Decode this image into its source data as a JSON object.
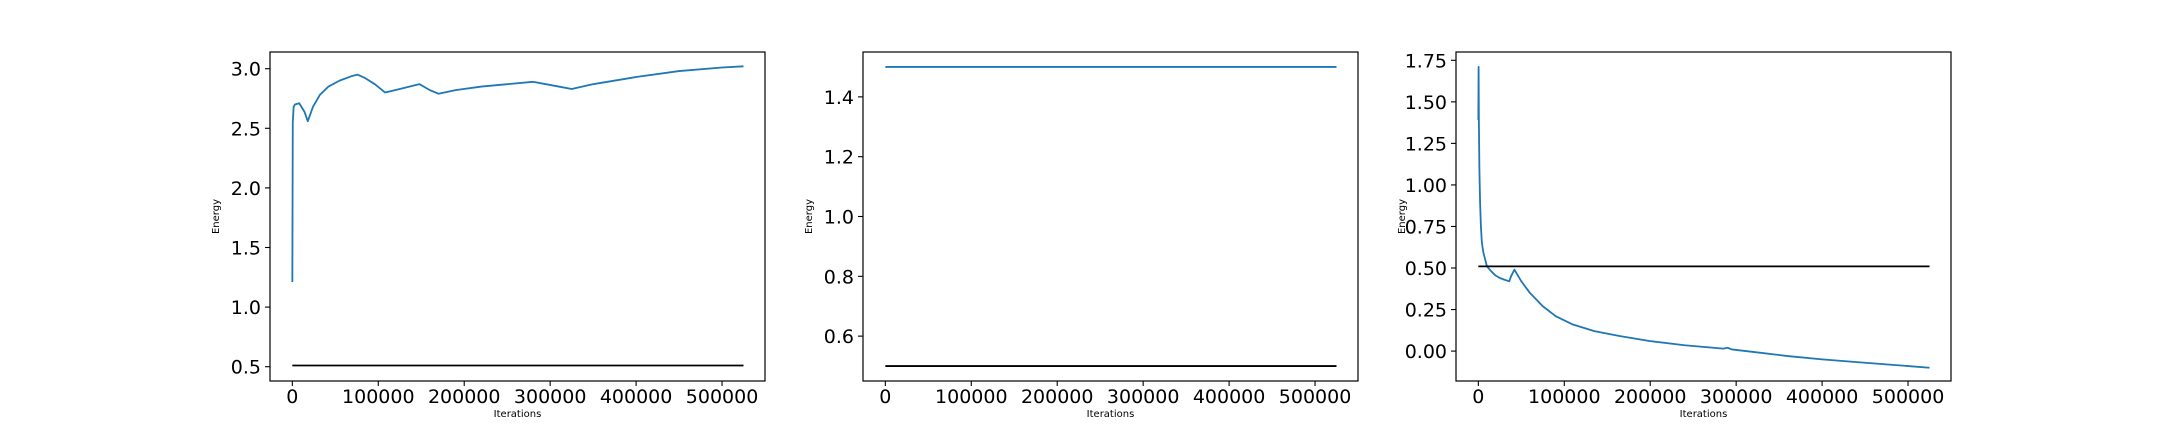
{
  "colors": {
    "series": "#1f77b4",
    "reference": "#000000",
    "axes": "#000000",
    "background": "#ffffff"
  },
  "chart_data": [
    {
      "type": "line",
      "xlabel": "Iterations",
      "ylabel": "Energy",
      "xlim": [
        -26000,
        550000
      ],
      "ylim": [
        0.38,
        3.14
      ],
      "grid": false,
      "xticks": [
        0,
        100000,
        200000,
        300000,
        400000,
        500000
      ],
      "xtick_labels": [
        "0",
        "100000",
        "200000",
        "300000",
        "400000",
        "500000"
      ],
      "yticks": [
        0.5,
        1.0,
        1.5,
        2.0,
        2.5,
        3.0
      ],
      "ytick_labels": [
        "0.5",
        "1.0",
        "1.5",
        "2.0",
        "2.5",
        "3.0"
      ],
      "series": [
        {
          "color": "#1f77b4",
          "x": [
            0,
            500,
            1500,
            3000,
            8000,
            14000,
            18000,
            24000,
            32000,
            42000,
            55000,
            70000,
            76000,
            85000,
            96000,
            108000,
            125000,
            148000,
            160000,
            170000,
            190000,
            220000,
            250000,
            280000,
            295000,
            310000,
            325000,
            350000,
            400000,
            450000,
            500000,
            525000
          ],
          "y": [
            1.21,
            2.55,
            2.68,
            2.7,
            2.71,
            2.64,
            2.56,
            2.68,
            2.78,
            2.85,
            2.9,
            2.94,
            2.95,
            2.92,
            2.87,
            2.8,
            2.83,
            2.87,
            2.82,
            2.79,
            2.82,
            2.85,
            2.87,
            2.89,
            2.87,
            2.85,
            2.83,
            2.87,
            2.93,
            2.98,
            3.01,
            3.02
          ]
        },
        {
          "color": "#000000",
          "x": [
            0,
            525000
          ],
          "y": [
            0.51,
            0.51
          ]
        }
      ]
    },
    {
      "type": "line",
      "xlabel": "Iterations",
      "ylabel": "Energy",
      "xlim": [
        -26000,
        550000
      ],
      "ylim": [
        0.45,
        1.55
      ],
      "grid": false,
      "xticks": [
        0,
        100000,
        200000,
        300000,
        400000,
        500000
      ],
      "xtick_labels": [
        "0",
        "100000",
        "200000",
        "300000",
        "400000",
        "500000"
      ],
      "yticks": [
        0.6,
        0.8,
        1.0,
        1.2,
        1.4
      ],
      "ytick_labels": [
        "0.6",
        "0.8",
        "1.0",
        "1.2",
        "1.4"
      ],
      "series": [
        {
          "color": "#1f77b4",
          "x": [
            0,
            525000
          ],
          "y": [
            1.5,
            1.5
          ]
        },
        {
          "color": "#000000",
          "x": [
            0,
            525000
          ],
          "y": [
            0.5,
            0.5
          ]
        }
      ]
    },
    {
      "type": "line",
      "xlabel": "Iterations",
      "ylabel": "Energy",
      "xlim": [
        -26000,
        550000
      ],
      "ylim": [
        -0.18,
        1.8
      ],
      "grid": false,
      "xticks": [
        0,
        100000,
        200000,
        300000,
        400000,
        500000
      ],
      "xtick_labels": [
        "0",
        "100000",
        "200000",
        "300000",
        "400000",
        "500000"
      ],
      "yticks": [
        0.0,
        0.25,
        0.5,
        0.75,
        1.0,
        1.25,
        1.5,
        1.75
      ],
      "ytick_labels": [
        "0.00",
        "0.25",
        "0.50",
        "0.75",
        "1.00",
        "1.25",
        "1.50",
        "1.75"
      ],
      "series": [
        {
          "color": "#1f77b4",
          "x": [
            0,
            300,
            600,
            1200,
            2000,
            3000,
            4000,
            5000,
            6000,
            8000,
            10000,
            15000,
            20000,
            25000,
            30000,
            36000,
            38000,
            42000,
            50000,
            60000,
            75000,
            90000,
            110000,
            135000,
            165000,
            200000,
            240000,
            285000,
            290000,
            295000,
            320000,
            360000,
            400000,
            450000,
            500000,
            525000
          ],
          "y": [
            1.39,
            1.71,
            1.4,
            1.1,
            0.9,
            0.75,
            0.66,
            0.62,
            0.59,
            0.55,
            0.51,
            0.48,
            0.455,
            0.44,
            0.43,
            0.42,
            0.45,
            0.49,
            0.42,
            0.35,
            0.27,
            0.21,
            0.16,
            0.12,
            0.09,
            0.06,
            0.035,
            0.015,
            0.02,
            0.01,
            -0.005,
            -0.03,
            -0.05,
            -0.07,
            -0.09,
            -0.1
          ]
        },
        {
          "color": "#000000",
          "x": [
            0,
            525000
          ],
          "y": [
            0.51,
            0.51
          ]
        }
      ]
    }
  ]
}
